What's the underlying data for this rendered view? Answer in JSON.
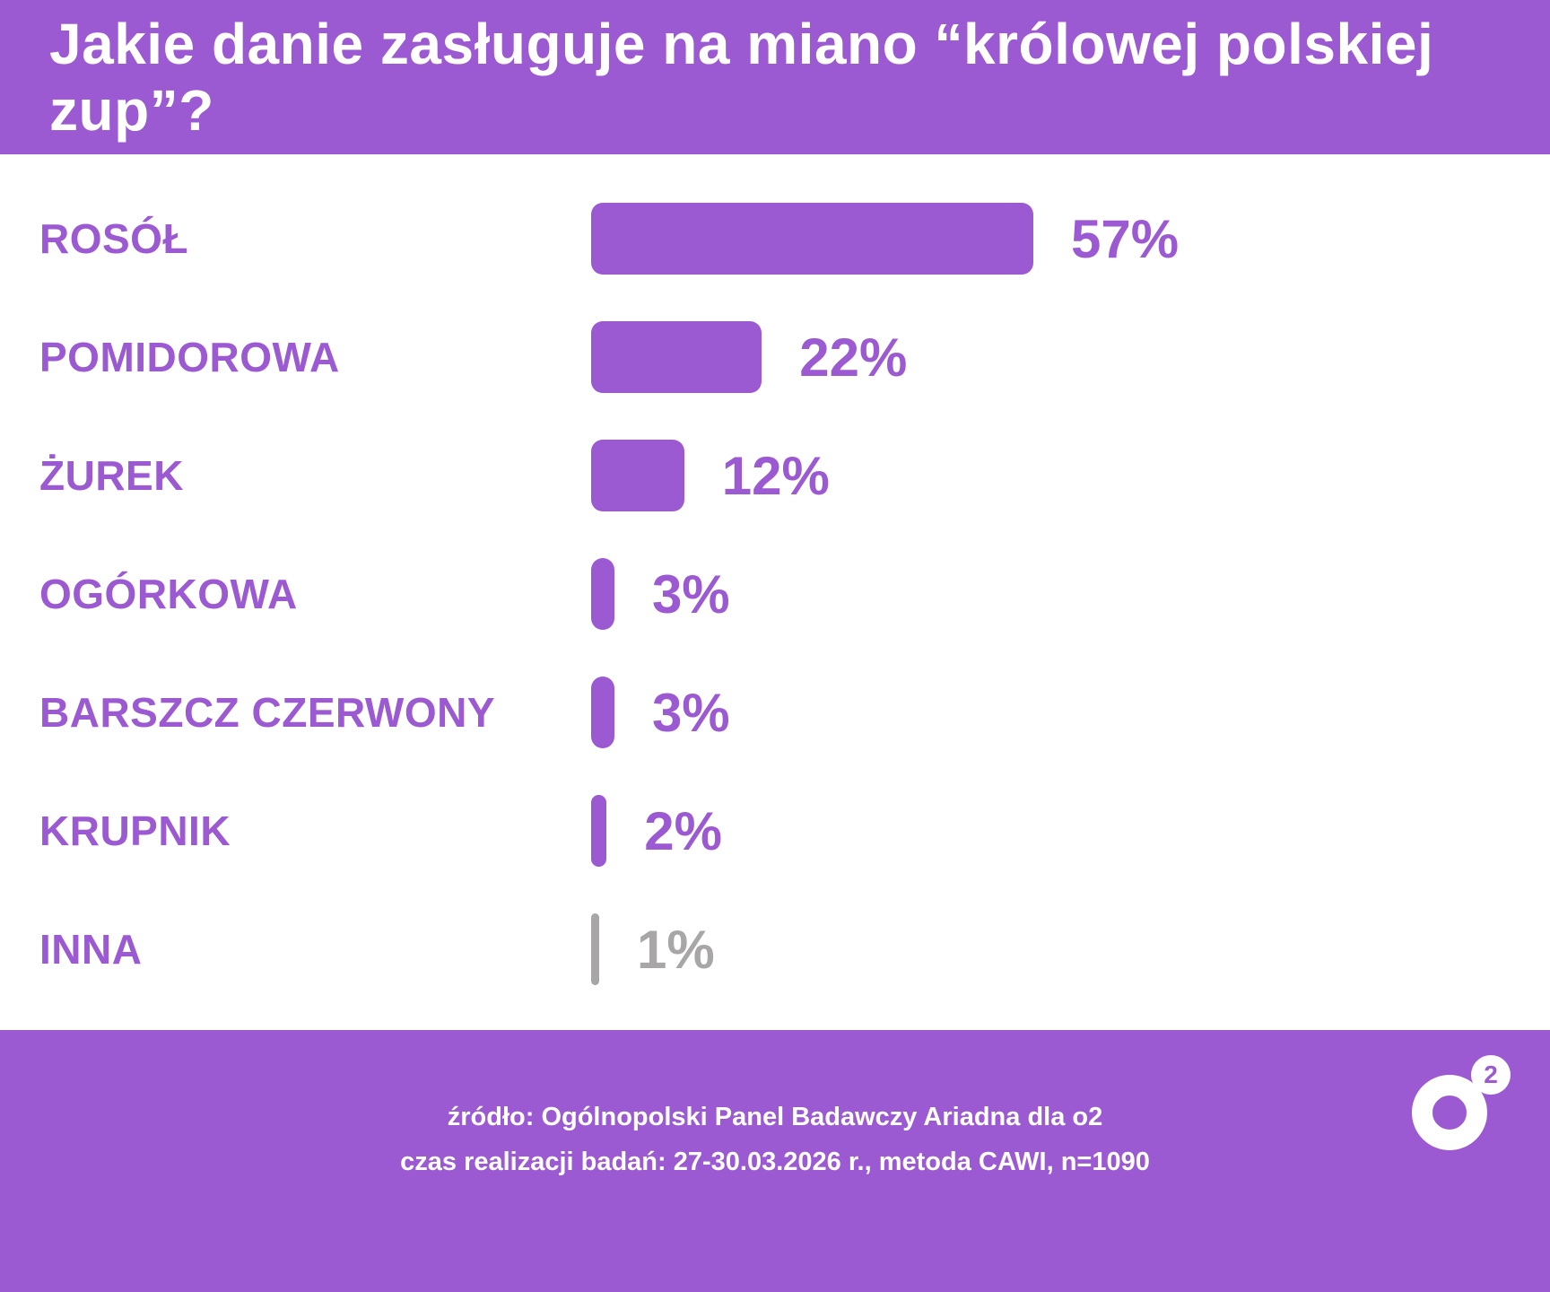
{
  "header": {
    "title": "Jakie danie zasługuje na miano “królowej polskiej zup”?"
  },
  "chart_data": {
    "type": "bar",
    "orientation": "horizontal",
    "title": "Jakie danie zasługuje na miano “królowej polskiej zup”?",
    "categories": [
      "ROSÓŁ",
      "POMIDOROWA",
      "ŻUREK",
      "OGÓRKOWA",
      "BARSZCZ CZERWONY",
      "KRUPNIK",
      "INNA"
    ],
    "values": [
      57,
      22,
      12,
      3,
      3,
      2,
      1
    ],
    "value_labels": [
      "57%",
      "22%",
      "12%",
      "3%",
      "3%",
      "2%",
      "1%"
    ],
    "bar_colors": [
      "#9b59d2",
      "#9b59d2",
      "#9b59d2",
      "#9b59d2",
      "#9b59d2",
      "#9b59d2",
      "#a8a6a7"
    ],
    "value_label_colors": [
      "#9b59d2",
      "#9b59d2",
      "#9b59d2",
      "#9b59d2",
      "#9b59d2",
      "#9b59d2",
      "#a8a6a7"
    ],
    "xlim": [
      0,
      60
    ],
    "grid": false,
    "legend": false
  },
  "footer": {
    "line1": "źródło: Ogólnopolski Panel Badawczy Ariadna dla o2",
    "line2": "czas realizacji badań: 27-30.03.2026 r., metoda CAWI, n=1090",
    "logo_sup": "2"
  },
  "colors": {
    "accent": "#9b59d2",
    "muted": "#a8a6a7",
    "background": "#ffffff",
    "header_text": "#ffffff"
  }
}
